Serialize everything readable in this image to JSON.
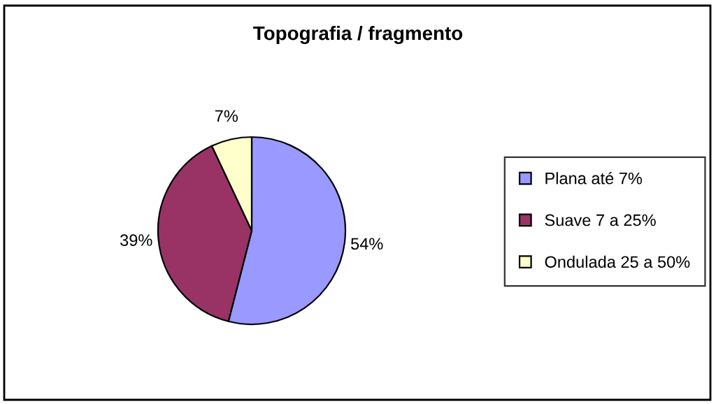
{
  "chart_data": {
    "type": "pie",
    "title": "Topografia / fragmento",
    "categories": [
      "Plana até 7%",
      "Suave 7 a 25%",
      "Ondulada 25 a 50%"
    ],
    "values": [
      54,
      39,
      7
    ],
    "colors": [
      "#9999ff",
      "#993366",
      "#ffffcc"
    ],
    "value_labels": [
      "54%",
      "39%",
      "7%"
    ],
    "legend": "right"
  }
}
